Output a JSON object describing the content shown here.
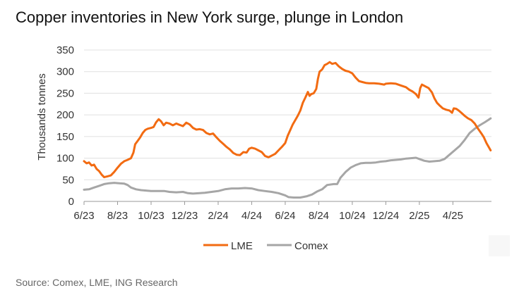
{
  "header": {
    "title": "Copper inventories in New York surge, plunge in London"
  },
  "footer": {
    "source": "Source: Comex, LME, ING Research"
  },
  "colors": {
    "lme": "#f26b12",
    "comex": "#a6a6a6",
    "grid": "#e0e0e0"
  },
  "chart_data": {
    "type": "line",
    "title": "Copper inventories in New York surge, plunge in London",
    "xlabel": "",
    "ylabel": "Thousands tonnes",
    "ylim": [
      0,
      350
    ],
    "yticks": [
      0,
      50,
      100,
      150,
      200,
      250,
      300,
      350
    ],
    "xlim": [
      0,
      24.3
    ],
    "xticks": [
      {
        "pos": 0,
        "label": "6/23"
      },
      {
        "pos": 2,
        "label": "8/23"
      },
      {
        "pos": 4,
        "label": "10/23"
      },
      {
        "pos": 6,
        "label": "12/23"
      },
      {
        "pos": 8,
        "label": "2/24"
      },
      {
        "pos": 10,
        "label": "4/24"
      },
      {
        "pos": 12,
        "label": "6/24"
      },
      {
        "pos": 14,
        "label": "8/24"
      },
      {
        "pos": 16,
        "label": "10/24"
      },
      {
        "pos": 18,
        "label": "12/24"
      },
      {
        "pos": 20,
        "label": "2/25"
      },
      {
        "pos": 22,
        "label": "4/25"
      }
    ],
    "grid": true,
    "legend": "bottom-center",
    "series": [
      {
        "name": "LME",
        "color": "#f26b12",
        "points": [
          [
            0,
            93
          ],
          [
            0.15,
            88
          ],
          [
            0.3,
            90
          ],
          [
            0.45,
            83
          ],
          [
            0.6,
            85
          ],
          [
            0.75,
            75
          ],
          [
            0.9,
            70
          ],
          [
            1.05,
            62
          ],
          [
            1.2,
            56
          ],
          [
            1.4,
            58
          ],
          [
            1.6,
            60
          ],
          [
            1.8,
            68
          ],
          [
            2.0,
            78
          ],
          [
            2.2,
            87
          ],
          [
            2.4,
            93
          ],
          [
            2.6,
            96
          ],
          [
            2.8,
            100
          ],
          [
            2.95,
            113
          ],
          [
            3.05,
            132
          ],
          [
            3.2,
            140
          ],
          [
            3.35,
            148
          ],
          [
            3.5,
            158
          ],
          [
            3.65,
            165
          ],
          [
            3.8,
            168
          ],
          [
            4.0,
            170
          ],
          [
            4.15,
            172
          ],
          [
            4.3,
            183
          ],
          [
            4.45,
            190
          ],
          [
            4.6,
            185
          ],
          [
            4.75,
            176
          ],
          [
            4.9,
            182
          ],
          [
            5.1,
            180
          ],
          [
            5.3,
            176
          ],
          [
            5.5,
            180
          ],
          [
            5.7,
            177
          ],
          [
            5.9,
            174
          ],
          [
            6.1,
            182
          ],
          [
            6.3,
            178
          ],
          [
            6.5,
            170
          ],
          [
            6.7,
            166
          ],
          [
            6.9,
            167
          ],
          [
            7.1,
            165
          ],
          [
            7.3,
            158
          ],
          [
            7.5,
            155
          ],
          [
            7.7,
            157
          ],
          [
            7.9,
            148
          ],
          [
            8.1,
            140
          ],
          [
            8.3,
            133
          ],
          [
            8.5,
            126
          ],
          [
            8.7,
            120
          ],
          [
            8.9,
            112
          ],
          [
            9.1,
            108
          ],
          [
            9.3,
            107
          ],
          [
            9.5,
            114
          ],
          [
            9.7,
            113
          ],
          [
            9.85,
            122
          ],
          [
            10.0,
            124
          ],
          [
            10.2,
            122
          ],
          [
            10.4,
            118
          ],
          [
            10.6,
            114
          ],
          [
            10.8,
            105
          ],
          [
            11.0,
            102
          ],
          [
            11.2,
            106
          ],
          [
            11.4,
            110
          ],
          [
            11.6,
            118
          ],
          [
            11.8,
            126
          ],
          [
            12.0,
            135
          ],
          [
            12.15,
            152
          ],
          [
            12.3,
            165
          ],
          [
            12.45,
            178
          ],
          [
            12.6,
            188
          ],
          [
            12.75,
            198
          ],
          [
            12.9,
            210
          ],
          [
            13.05,
            228
          ],
          [
            13.2,
            240
          ],
          [
            13.35,
            253
          ],
          [
            13.45,
            244
          ],
          [
            13.55,
            248
          ],
          [
            13.7,
            250
          ],
          [
            13.85,
            260
          ],
          [
            13.95,
            283
          ],
          [
            14.05,
            300
          ],
          [
            14.2,
            305
          ],
          [
            14.35,
            315
          ],
          [
            14.5,
            318
          ],
          [
            14.65,
            322
          ],
          [
            14.8,
            318
          ],
          [
            15.0,
            320
          ],
          [
            15.2,
            312
          ],
          [
            15.4,
            306
          ],
          [
            15.6,
            302
          ],
          [
            15.8,
            300
          ],
          [
            16.0,
            296
          ],
          [
            16.2,
            286
          ],
          [
            16.4,
            278
          ],
          [
            16.6,
            276
          ],
          [
            16.8,
            274
          ],
          [
            17.0,
            273
          ],
          [
            17.3,
            273
          ],
          [
            17.6,
            272
          ],
          [
            17.9,
            270
          ],
          [
            18.0,
            272
          ],
          [
            18.3,
            273
          ],
          [
            18.6,
            272
          ],
          [
            18.9,
            268
          ],
          [
            19.2,
            264
          ],
          [
            19.4,
            258
          ],
          [
            19.6,
            254
          ],
          [
            19.8,
            248
          ],
          [
            19.95,
            240
          ],
          [
            20.05,
            262
          ],
          [
            20.15,
            270
          ],
          [
            20.35,
            266
          ],
          [
            20.55,
            262
          ],
          [
            20.75,
            252
          ],
          [
            20.9,
            238
          ],
          [
            21.05,
            228
          ],
          [
            21.2,
            222
          ],
          [
            21.4,
            215
          ],
          [
            21.6,
            212
          ],
          [
            21.8,
            210
          ],
          [
            21.95,
            205
          ],
          [
            22.05,
            215
          ],
          [
            22.2,
            214
          ],
          [
            22.35,
            210
          ],
          [
            22.5,
            205
          ],
          [
            22.7,
            198
          ],
          [
            22.9,
            192
          ],
          [
            23.1,
            188
          ],
          [
            23.3,
            180
          ],
          [
            23.5,
            168
          ],
          [
            23.7,
            157
          ],
          [
            23.85,
            148
          ],
          [
            24.0,
            135
          ],
          [
            24.15,
            125
          ],
          [
            24.25,
            118
          ]
        ]
      },
      {
        "name": "Comex",
        "color": "#a6a6a6",
        "points": [
          [
            0,
            27
          ],
          [
            0.3,
            28
          ],
          [
            0.6,
            32
          ],
          [
            0.9,
            36
          ],
          [
            1.2,
            40
          ],
          [
            1.5,
            42
          ],
          [
            1.8,
            43
          ],
          [
            2.1,
            42
          ],
          [
            2.4,
            41
          ],
          [
            2.6,
            38
          ],
          [
            2.8,
            32
          ],
          [
            3.1,
            28
          ],
          [
            3.4,
            26
          ],
          [
            3.7,
            25
          ],
          [
            4.0,
            24
          ],
          [
            4.4,
            24
          ],
          [
            4.8,
            24
          ],
          [
            5.1,
            22
          ],
          [
            5.5,
            21
          ],
          [
            5.9,
            22
          ],
          [
            6.2,
            19
          ],
          [
            6.5,
            18
          ],
          [
            6.9,
            19
          ],
          [
            7.2,
            20
          ],
          [
            7.6,
            22
          ],
          [
            8.0,
            24
          ],
          [
            8.4,
            28
          ],
          [
            8.8,
            30
          ],
          [
            9.2,
            30
          ],
          [
            9.6,
            31
          ],
          [
            10.0,
            30
          ],
          [
            10.4,
            26
          ],
          [
            10.8,
            24
          ],
          [
            11.2,
            22
          ],
          [
            11.6,
            19
          ],
          [
            12.0,
            14
          ],
          [
            12.2,
            10
          ],
          [
            12.5,
            9
          ],
          [
            12.9,
            9
          ],
          [
            13.3,
            12
          ],
          [
            13.6,
            16
          ],
          [
            13.9,
            23
          ],
          [
            14.2,
            28
          ],
          [
            14.5,
            38
          ],
          [
            14.9,
            40
          ],
          [
            15.1,
            40
          ],
          [
            15.3,
            55
          ],
          [
            15.6,
            68
          ],
          [
            15.9,
            78
          ],
          [
            16.2,
            84
          ],
          [
            16.5,
            88
          ],
          [
            16.8,
            89
          ],
          [
            17.1,
            89
          ],
          [
            17.4,
            90
          ],
          [
            17.7,
            92
          ],
          [
            18.0,
            93
          ],
          [
            18.3,
            95
          ],
          [
            18.6,
            96
          ],
          [
            18.9,
            97
          ],
          [
            19.2,
            99
          ],
          [
            19.5,
            100
          ],
          [
            19.8,
            101
          ],
          [
            20.0,
            98
          ],
          [
            20.3,
            94
          ],
          [
            20.6,
            92
          ],
          [
            20.9,
            93
          ],
          [
            21.2,
            94
          ],
          [
            21.5,
            98
          ],
          [
            21.8,
            108
          ],
          [
            22.1,
            118
          ],
          [
            22.4,
            128
          ],
          [
            22.7,
            142
          ],
          [
            23.0,
            158
          ],
          [
            23.3,
            168
          ],
          [
            23.6,
            176
          ],
          [
            23.9,
            183
          ],
          [
            24.1,
            188
          ],
          [
            24.25,
            192
          ]
        ]
      }
    ]
  }
}
